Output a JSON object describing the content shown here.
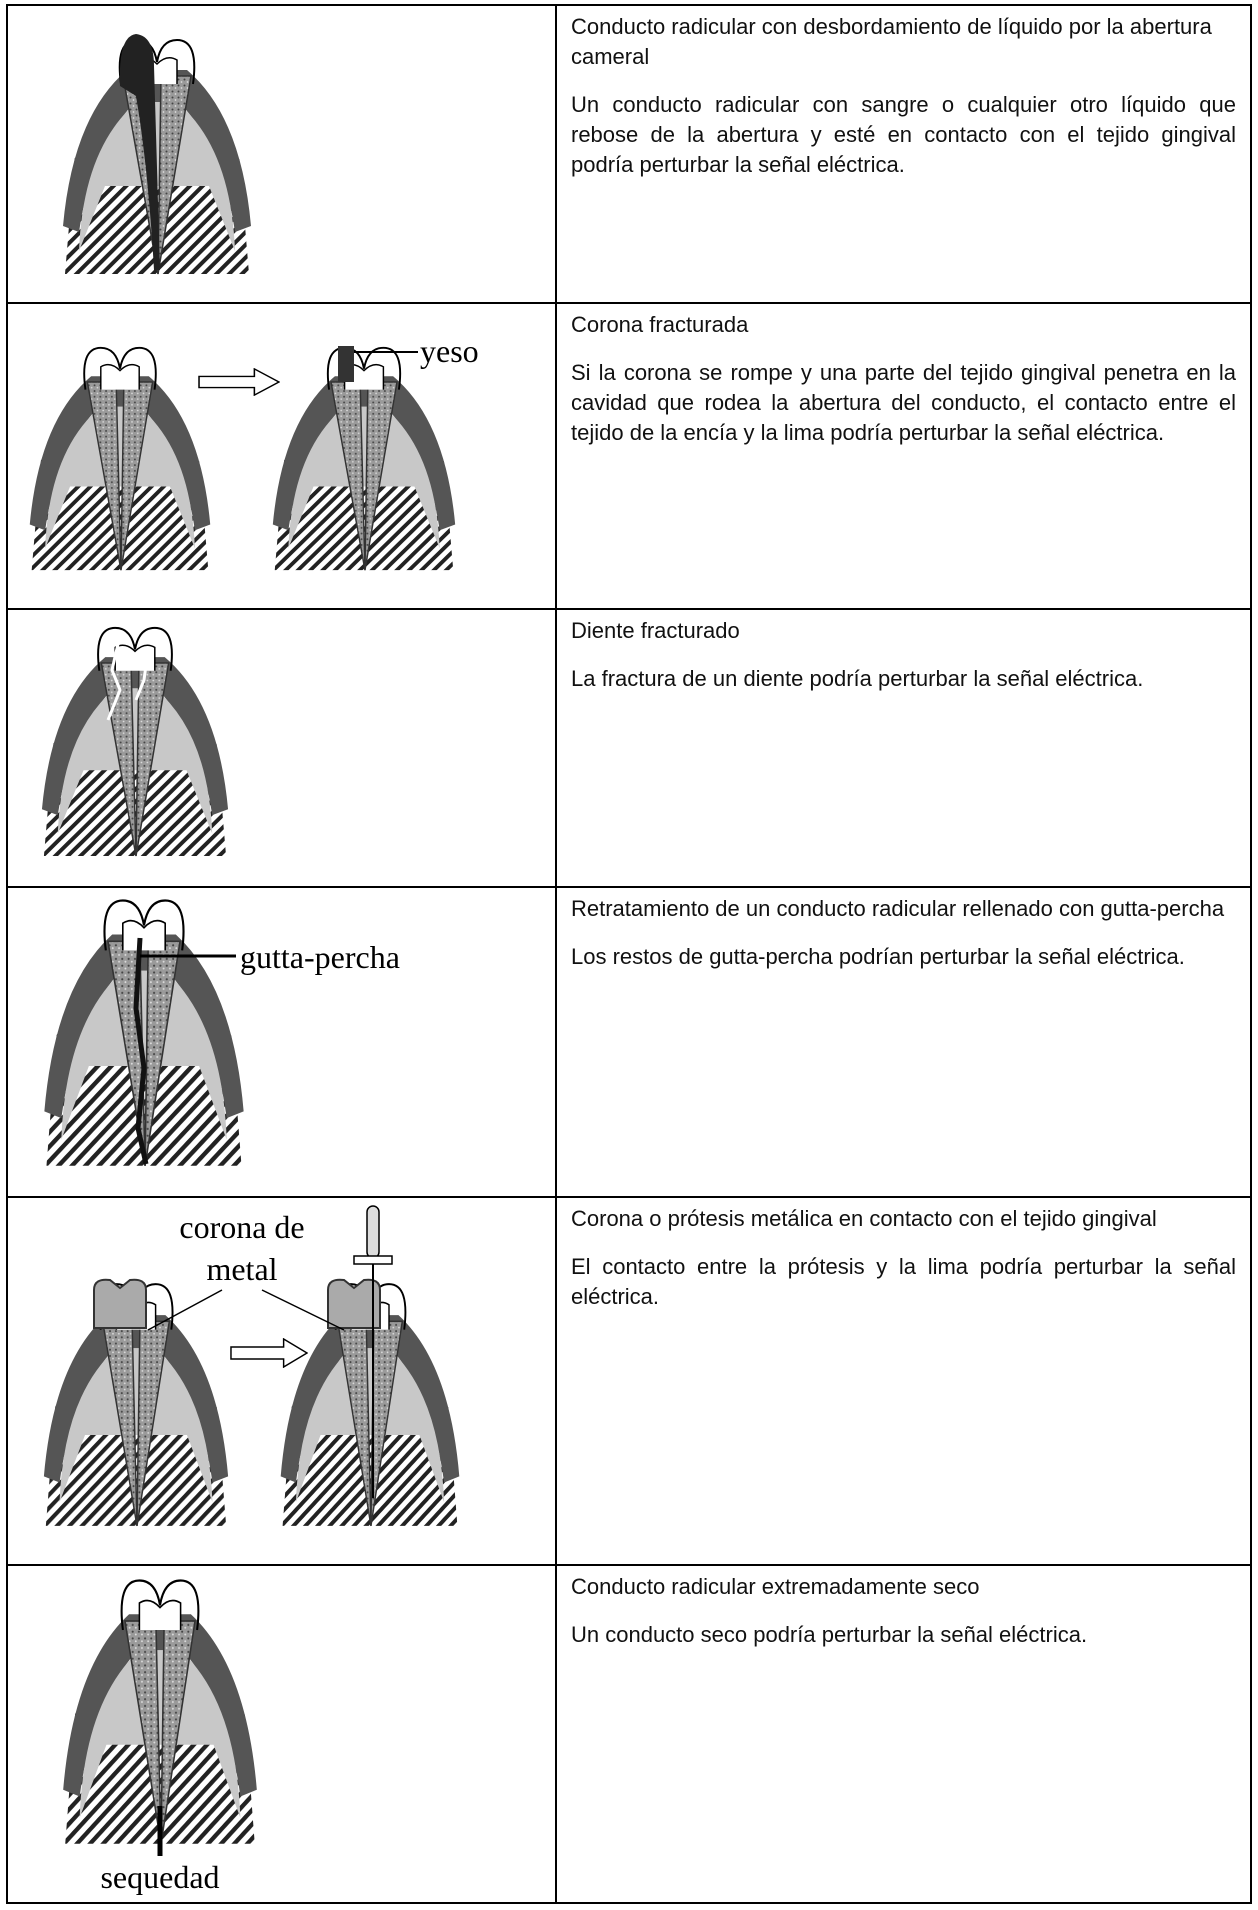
{
  "rows": [
    {
      "title": "Conducto radicular con desbordamiento de líquido por la abertura cameral",
      "text": "Un conducto radicular con sangre o cualquier otro líquido que rebose de la abertura y esté en contacto con el tejido gingival podría perturbar la señal eléctrica."
    },
    {
      "title": "Corona fracturada",
      "text": "Si la corona se rompe y una parte del tejido gingival penetra en la cavidad que rodea la abertura del conducto, el contacto entre el tejido de la encía y la lima podría perturbar la señal eléctrica.",
      "labels": [
        "yeso"
      ]
    },
    {
      "title": "Diente fracturado",
      "text": "La fractura de un diente podría perturbar la señal eléctrica."
    },
    {
      "title": "Retratamiento de un conducto radicular rellenado con gutta-percha",
      "text": "Los restos de gutta-percha podrían perturbar la señal eléctrica.",
      "labels": [
        "gutta-percha"
      ]
    },
    {
      "title": "Corona o prótesis metálica en contacto con el tejido gingival",
      "text": "El contacto entre la prótesis y la lima podría perturbar la señal eléctrica.",
      "labels": [
        "corona de",
        "metal"
      ]
    },
    {
      "title": "Conducto radicular extremadamente seco",
      "text": "Un conducto seco podría perturbar la señal eléctrica.",
      "labels": [
        "sequedad"
      ]
    }
  ]
}
